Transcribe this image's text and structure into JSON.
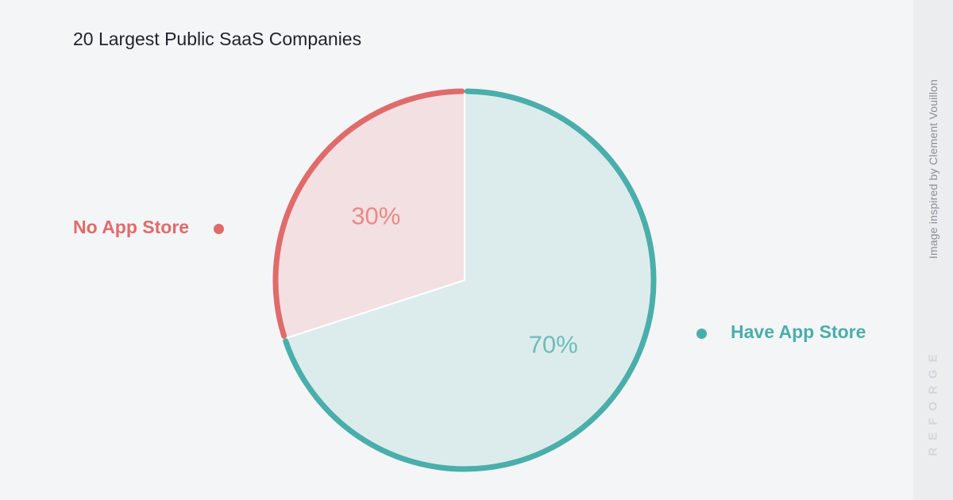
{
  "chart_data": {
    "type": "pie",
    "title": "20 Largest Public SaaS Companies",
    "slices": [
      {
        "label": "Have App Store",
        "value": 70,
        "value_label": "70%",
        "color": "#4aaeaa",
        "fill": "#dcecec",
        "pct_color": "#6fbcb8"
      },
      {
        "label": "No App Store",
        "value": 30,
        "value_label": "30%",
        "color": "#e06b6b",
        "fill": "#f3e0e2",
        "pct_color": "#e88a86"
      }
    ]
  },
  "sidebar": {
    "credit": "Image inspired by Clement Vouillon",
    "brand": "REFORGE"
  }
}
